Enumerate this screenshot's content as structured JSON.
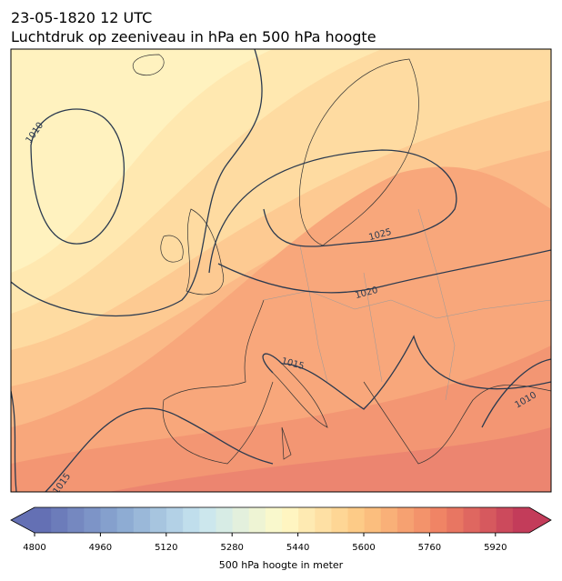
{
  "header": {
    "title": "23-05-1820 12 UTC",
    "subtitle": "Luchtdruk op zeeniveau in hPa en 500 hPa hoogte"
  },
  "isobars": [
    {
      "label": 1010
    },
    {
      "label": 1025
    },
    {
      "label": 1020
    },
    {
      "label": 1015
    },
    {
      "label": 1010
    },
    {
      "label": 1015
    }
  ],
  "colorbar": {
    "ticks": [
      4800,
      4960,
      5120,
      5280,
      5440,
      5600,
      5760,
      5920
    ],
    "label": "500 hPa hoogte in meter"
  }
}
